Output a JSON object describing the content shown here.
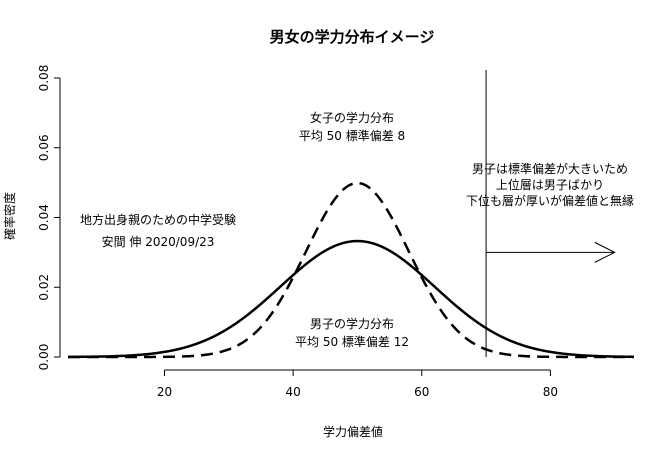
{
  "chart_data": {
    "type": "line",
    "title": "男女の学力分布イメージ",
    "xlabel": "学力偏差値",
    "ylabel": "確率密度",
    "xlim": [
      5,
      93
    ],
    "ylim": [
      0,
      0.08
    ],
    "x_ticks": [
      20,
      40,
      60,
      80
    ],
    "y_ticks": [
      0.0,
      0.02,
      0.04,
      0.06,
      0.08
    ],
    "x_tick_labels": [
      "20",
      "40",
      "60",
      "80"
    ],
    "y_tick_labels": [
      "0.00",
      "0.02",
      "0.04",
      "0.06",
      "0.08"
    ],
    "grid": false,
    "series": [
      {
        "mean": 50,
        "sd": 12,
        "line_style": "solid"
      },
      {
        "mean": 50,
        "sd": 8,
        "line_style": "dashed"
      }
    ],
    "vertical_line_x": 70,
    "arrow": {
      "x_start": 70,
      "x_end": 90,
      "y": 0.03
    },
    "annotations": {
      "girls_line1": "女子の学力分布",
      "girls_line2": "平均 50  標準偏差 8",
      "boys_line1": "男子の学力分布",
      "boys_line2": "平均 50  標準偏差 12",
      "credit_line1": "地方出身親のための中学受験",
      "credit_line2": "安間  伸  2020/09/23",
      "note_line1": "男子は標準偏差が大きいため",
      "note_line2": "上位層は男子ばかり",
      "note_line3": "下位も層が厚いが偏差値と無縁"
    }
  }
}
